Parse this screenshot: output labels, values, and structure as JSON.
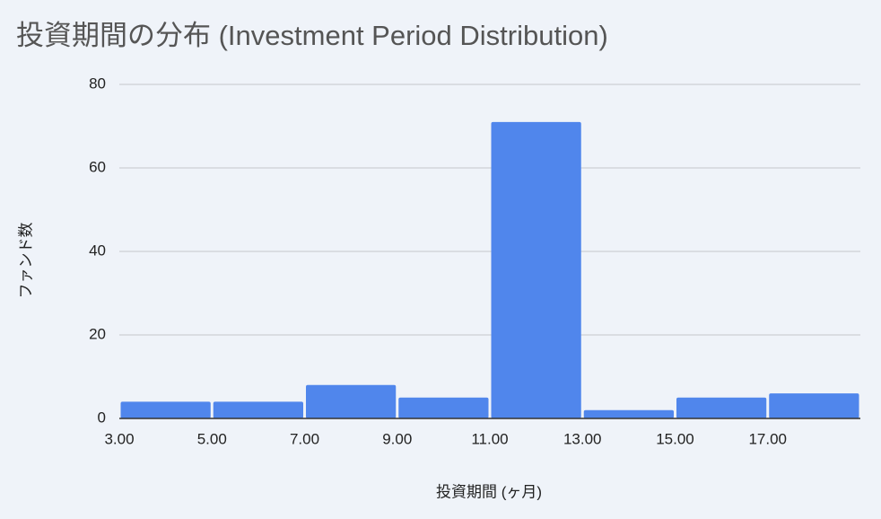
{
  "chart_data": {
    "type": "histogram",
    "title": "投資期間の分布 (Investment Period Distribution)",
    "x_label": "投資期間 (ヶ月)",
    "y_label": "ファンド数",
    "bins": [
      3,
      5,
      7,
      9,
      11,
      13,
      15,
      17,
      19
    ],
    "values": [
      4,
      4,
      8,
      5,
      71,
      2,
      5,
      6
    ],
    "color": "#5086ec",
    "xlim": [
      3,
      19
    ],
    "xticks": [
      {
        "value": 3,
        "label": "3.00"
      },
      {
        "value": 5,
        "label": "5.00"
      },
      {
        "value": 7,
        "label": "7.00"
      },
      {
        "value": 9,
        "label": "9.00"
      },
      {
        "value": 11,
        "label": "11.00"
      },
      {
        "value": 13,
        "label": "13.00"
      },
      {
        "value": 15,
        "label": "15.00"
      },
      {
        "value": 17,
        "label": "17.00"
      }
    ],
    "ylim": [
      0,
      80
    ],
    "yticks": [
      0,
      20,
      40,
      60,
      80
    ],
    "grid": true
  }
}
